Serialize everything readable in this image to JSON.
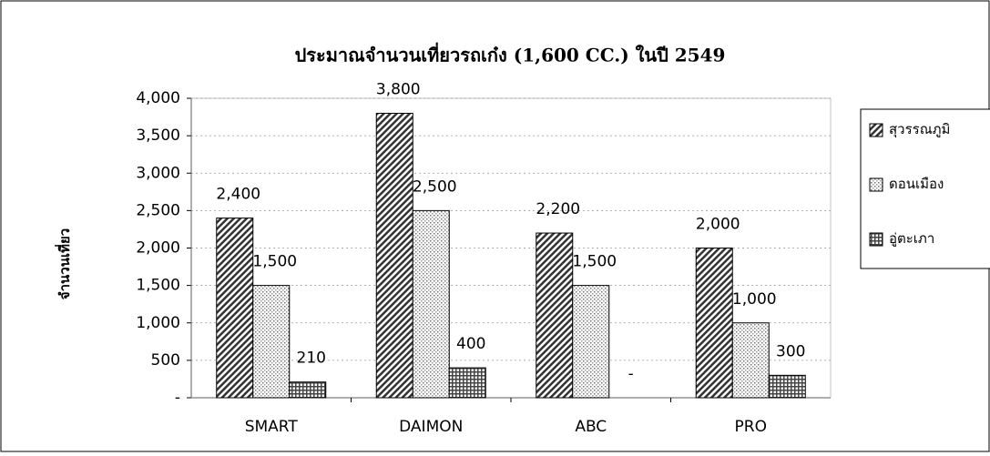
{
  "chart_data": {
    "type": "bar",
    "title": "ประมาณจำนวนเที่ยวรถเก๋ง (1,600 CC.) ในปี 2549",
    "y_label": "จำนวนเที่ยว",
    "categories": [
      "SMART",
      "DAIMON",
      "ABC",
      "PRO"
    ],
    "series": [
      {
        "name": "สุวรรณภูมิ",
        "color": "#333333",
        "values": [
          2400,
          3800,
          2200,
          2000
        ],
        "value_labels": [
          "2,400",
          "3,800",
          "2,200",
          "2,000"
        ]
      },
      {
        "name": "ดอนเมือง",
        "color": "#999999",
        "values": [
          1500,
          2500,
          1500,
          1000
        ],
        "value_labels": [
          "1,500",
          "2,500",
          "1,500",
          "1,000"
        ]
      },
      {
        "name": "อู่ตะเภา",
        "color": "#444444",
        "values": [
          210,
          400,
          0,
          300
        ],
        "value_labels": [
          "210",
          "400",
          "-",
          "300"
        ]
      }
    ],
    "ylim": [
      0,
      4000
    ],
    "yticks": [
      {
        "value": 0,
        "label": "-"
      },
      500,
      {
        "value": 1000,
        "label": "1,000"
      },
      {
        "value": 1500,
        "label": "1,500"
      },
      {
        "value": 2000,
        "label": "2,000"
      },
      {
        "value": 2500,
        "label": "2,500"
      },
      {
        "value": 3000,
        "label": "3,000"
      },
      {
        "value": 3500,
        "label": "3,500"
      },
      {
        "value": 4000,
        "label": "4,000"
      }
    ],
    "grid": true,
    "legend": "right"
  }
}
